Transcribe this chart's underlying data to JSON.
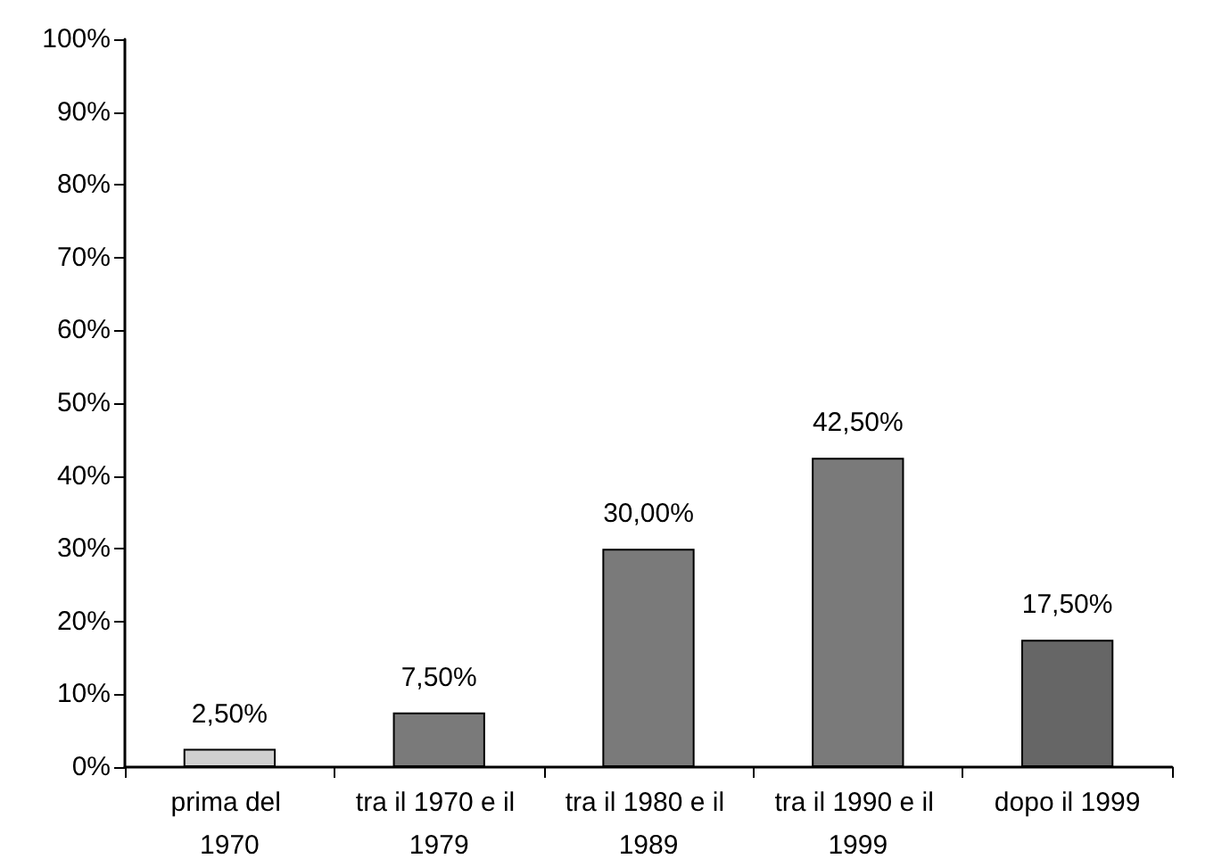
{
  "chart_data": {
    "type": "bar",
    "categories": [
      "prima del 1970",
      "tra il 1970 e il 1979",
      "tra il 1980 e il 1989",
      "tra il 1990 e il 1999",
      "dopo il 1999"
    ],
    "values": [
      2.5,
      7.5,
      30,
      42.5,
      17.5
    ],
    "colors": [
      "#d0d0d0",
      "#7a7a7a",
      "#7a7a7a",
      "#7a7a7a",
      "#666666"
    ],
    "value_labels": [
      "2,50%",
      "7,50%",
      "30,00%",
      "42,50%",
      "17,50%"
    ],
    "ylim": [
      0,
      100
    ],
    "yticks": [
      {
        "value": 0,
        "label": "0%"
      },
      {
        "value": 10,
        "label": "10%"
      },
      {
        "value": 20,
        "label": "20%"
      },
      {
        "value": 30,
        "label": "30%"
      },
      {
        "value": 40,
        "label": "40%"
      },
      {
        "value": 50,
        "label": "50%"
      },
      {
        "value": 60,
        "label": "60%"
      },
      {
        "value": 70,
        "label": "70%"
      },
      {
        "value": 80,
        "label": "80%"
      },
      {
        "value": 90,
        "label": "90%"
      },
      {
        "value": 100,
        "label": "100%"
      }
    ]
  }
}
